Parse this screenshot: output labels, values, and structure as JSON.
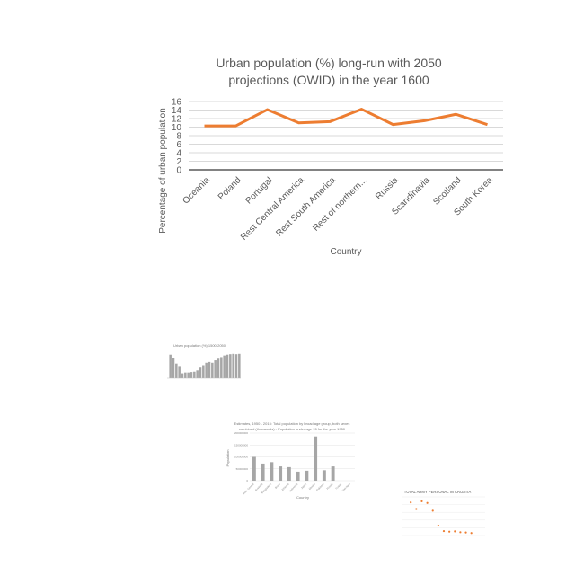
{
  "chart_data": [
    {
      "type": "line",
      "title_line1": "Urban population (%) long-run with 2050",
      "title_line2": "projections (OWID) in the year 1600",
      "xlabel": "Country",
      "ylabel": "Percentage of urban population",
      "ylim": [
        0,
        16
      ],
      "yticks": [
        0,
        2,
        4,
        6,
        8,
        10,
        12,
        14,
        16
      ],
      "grid": true,
      "color": "#ed7d31",
      "categories": [
        "Oceania",
        "Poland",
        "Portugal",
        "Rest Central America",
        "Rest South America",
        "Rest of northern...",
        "Russia",
        "Scandinavia",
        "Scotland",
        "South Korea"
      ],
      "values": [
        10.3,
        10.3,
        14.1,
        11.0,
        11.3,
        14.2,
        10.6,
        11.5,
        13.0,
        10.6
      ]
    },
    {
      "type": "bar",
      "title": "Urban population (%) 1500-2050",
      "color": "#a6a6a6",
      "values": [
        14.5,
        12.5,
        9.0,
        7.5,
        3.0,
        3.5,
        3.5,
        3.8,
        4.0,
        4.8,
        6.5,
        8.0,
        9.5,
        10.0,
        9.5,
        11.0,
        12.0,
        13.0,
        14.0,
        14.5,
        14.8,
        15.0,
        14.8,
        15.0
      ]
    },
    {
      "type": "bar",
      "title_line1": "Estimates, 1950 - 2015: Total population by broad age group, both sexes",
      "title_line2": "combined (thousands) - Population under age 15 for the year 1950",
      "xlabel": "Country",
      "ylabel": "Population",
      "color": "#a6a6a6",
      "ylim": [
        0,
        200000000
      ],
      "yticks": [
        "200000000",
        "150000000",
        "100000000",
        "50000000",
        "0"
      ],
      "categories": [
        "Asia, Central",
        "Australia",
        "Bangladesh",
        "Brazil",
        "Ethiopia",
        "Indonesia",
        "Japan",
        "Mexico",
        "Pakistan",
        "Russia",
        "Turkey",
        "Viet Nam"
      ],
      "values": [
        100000000,
        72000000,
        78000000,
        60000000,
        57000000,
        38000000,
        42000000,
        186000000,
        44000000,
        60000000,
        0,
        0
      ]
    },
    {
      "type": "scatter",
      "title": "TOTAL ARMY PERSONAL IN CROATIA",
      "color": "#ed7d31",
      "xlim": [
        1990,
        2020
      ],
      "ylim": [
        0,
        70000
      ],
      "x": [
        1993,
        1995,
        1997,
        1999,
        2001,
        2003,
        2005,
        2007,
        2009,
        2011,
        2013,
        2015
      ],
      "y": [
        60000,
        48000,
        62000,
        59000,
        45000,
        18000,
        8000,
        7000,
        7500,
        6000,
        5500,
        4500
      ]
    }
  ]
}
